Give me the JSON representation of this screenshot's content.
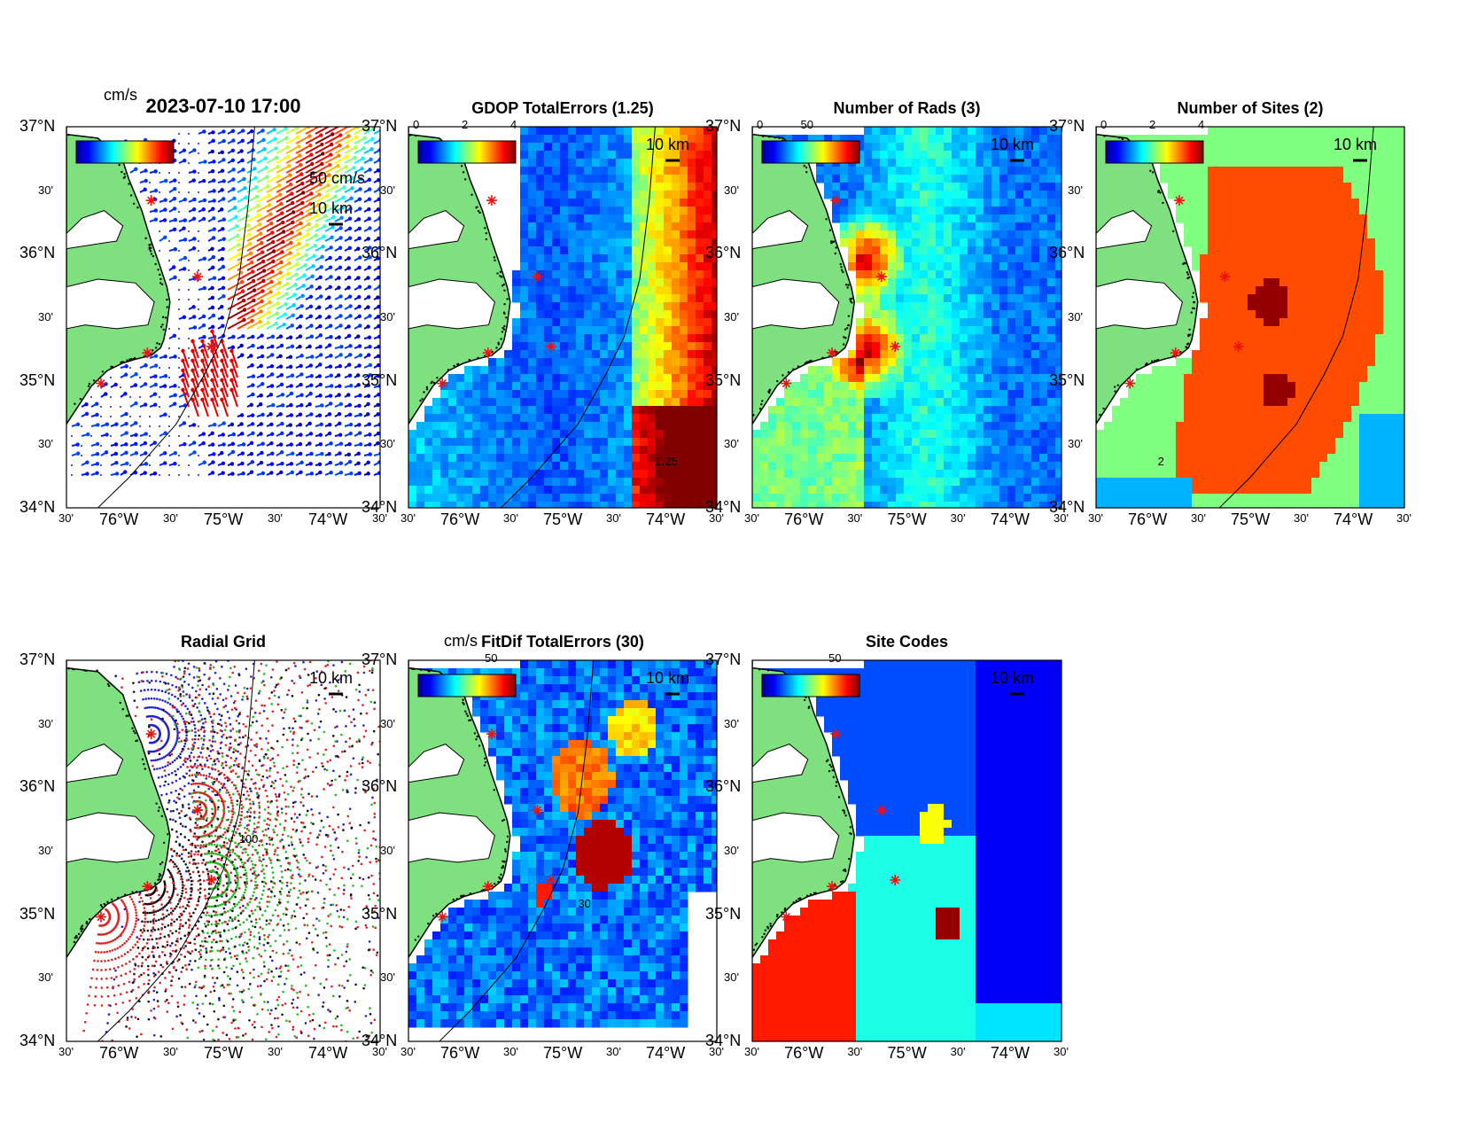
{
  "panels": [
    {
      "id": "p1",
      "title": "2023-07-10 17:00",
      "cb_label": "cm/s",
      "cb_ticks": [],
      "scale_vec": "50 cm/s",
      "scale_km": "10 km",
      "kind": "vectors"
    },
    {
      "id": "p2",
      "title": "GDOP TotalErrors (1.25)",
      "cb_label": "",
      "cb_ticks": [
        "0",
        "2",
        "4"
      ],
      "scale_km": "10 km",
      "kind": "gdop",
      "contour": "1.25"
    },
    {
      "id": "p3",
      "title": "Number of Rads (3)",
      "cb_label": "",
      "cb_ticks": [
        "0",
        "50"
      ],
      "scale_km": "10 km",
      "kind": "rads"
    },
    {
      "id": "p4",
      "title": "Number of Sites (2)",
      "cb_label": "",
      "cb_ticks": [
        "0",
        "2",
        "4"
      ],
      "scale_km": "10 km",
      "kind": "sites",
      "contour": "2"
    },
    {
      "id": "p5",
      "title": "Radial Grid",
      "cb_label": "",
      "cb_ticks": [],
      "scale_km": "10 km",
      "kind": "grid",
      "contour": "100"
    },
    {
      "id": "p6",
      "title": "FitDif TotalErrors (30)",
      "cb_label": "cm/s",
      "cb_ticks": [
        "50"
      ],
      "scale_km": "10 km",
      "kind": "fitdif",
      "contour": "30"
    },
    {
      "id": "p7",
      "title": "Site Codes",
      "cb_label": "",
      "cb_ticks": [
        "50"
      ],
      "scale_km": "10 km",
      "kind": "codes"
    }
  ],
  "axes": {
    "lat_labels": [
      "37°N",
      "30'",
      "36°N",
      "30'",
      "35°N",
      "30'",
      "34°N"
    ],
    "lon_labels": [
      "30'",
      "76°W",
      "30'",
      "75°W",
      "30'",
      "74°W",
      "30'"
    ],
    "lat_range": [
      34,
      37
    ],
    "lon_range": [
      -76.5,
      -74
    ]
  },
  "colors": {
    "land": "#7ee07e",
    "radar_site": "#e11",
    "jet_low": "#0000a0",
    "jet_high": "#800000"
  },
  "sites": [
    [
      -75.95,
      36.42
    ],
    [
      -75.58,
      35.82
    ],
    [
      -75.47,
      35.27
    ],
    [
      -75.98,
      35.22
    ],
    [
      -76.35,
      34.98
    ]
  ]
}
